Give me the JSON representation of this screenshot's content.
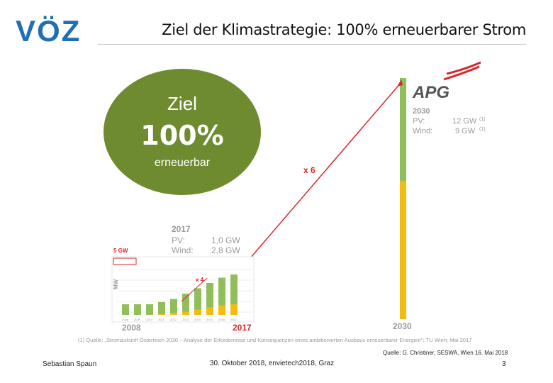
{
  "slide": {
    "title": "Ziel der Klimastrategie: 100% erneuerbarer Strom",
    "logo_text": "VÖZ",
    "circle": {
      "line1": "Ziel",
      "line2": "100%",
      "line3": "erneuerbar"
    },
    "footer": {
      "presenter": "Sebastian Spaun",
      "event": "30. Oktober 2018, envietech2018, Graz",
      "source": "Quelle: G. Christiner, SESWA, Wien 16. Mai 2018",
      "page": "3"
    }
  },
  "chart_data": {
    "type": "bar",
    "brand": "APG",
    "start_year_label": "2008",
    "mid_year_label": "2017",
    "end_year_label": "2030",
    "multiplier_small": "x 4",
    "multiplier_large": "x 6",
    "ylabel": "MW",
    "capacity_label": "5 GW",
    "box_2017": {
      "year": "2017",
      "pv_label": "PV:",
      "pv_value": "1,0 GW",
      "wind_label": "Wind:",
      "wind_value": "2,8 GW"
    },
    "box_2030": {
      "year": "2030",
      "pv_label": "PV:",
      "pv_value": "12 GW",
      "pv_note": "(1)",
      "wind_label": "Wind:",
      "wind_value": "9 GW",
      "wind_note": "(1)"
    },
    "footnote": "(1) Quelle: „Stromzukunft Österreich 2030 – Analyse der Erfordernisse und Konsequenzen eines ambitionierten Ausbaus erneuerbarer Energien\"; TU Wien; Mai 2017",
    "bars": [
      {
        "year": "2008",
        "wind": 1.0,
        "pv": 0.0
      },
      {
        "year": "2009",
        "wind": 1.0,
        "pv": 0.0
      },
      {
        "year": "2010",
        "wind": 1.0,
        "pv": 0.0
      },
      {
        "year": "2011",
        "wind": 1.1,
        "pv": 0.1
      },
      {
        "year": "2012",
        "wind": 1.3,
        "pv": 0.2
      },
      {
        "year": "2013",
        "wind": 1.7,
        "pv": 0.3
      },
      {
        "year": "2014",
        "wind": 2.0,
        "pv": 0.5
      },
      {
        "year": "2015",
        "wind": 2.3,
        "pv": 0.7
      },
      {
        "year": "2016",
        "wind": 2.6,
        "pv": 0.9
      },
      {
        "year": "2017",
        "wind": 2.8,
        "pv": 1.0
      }
    ],
    "bar_2030": {
      "year": "2030",
      "pv": 12,
      "wind": 9
    },
    "colors": {
      "wind": "#8fbe5a",
      "pv": "#f2bc12",
      "arrow": "#d9262a",
      "text_gray": "#9a9a9a",
      "circle": "#6f8b2f",
      "logo": "#1f6fb5",
      "apg_red": "#d9262a"
    }
  }
}
